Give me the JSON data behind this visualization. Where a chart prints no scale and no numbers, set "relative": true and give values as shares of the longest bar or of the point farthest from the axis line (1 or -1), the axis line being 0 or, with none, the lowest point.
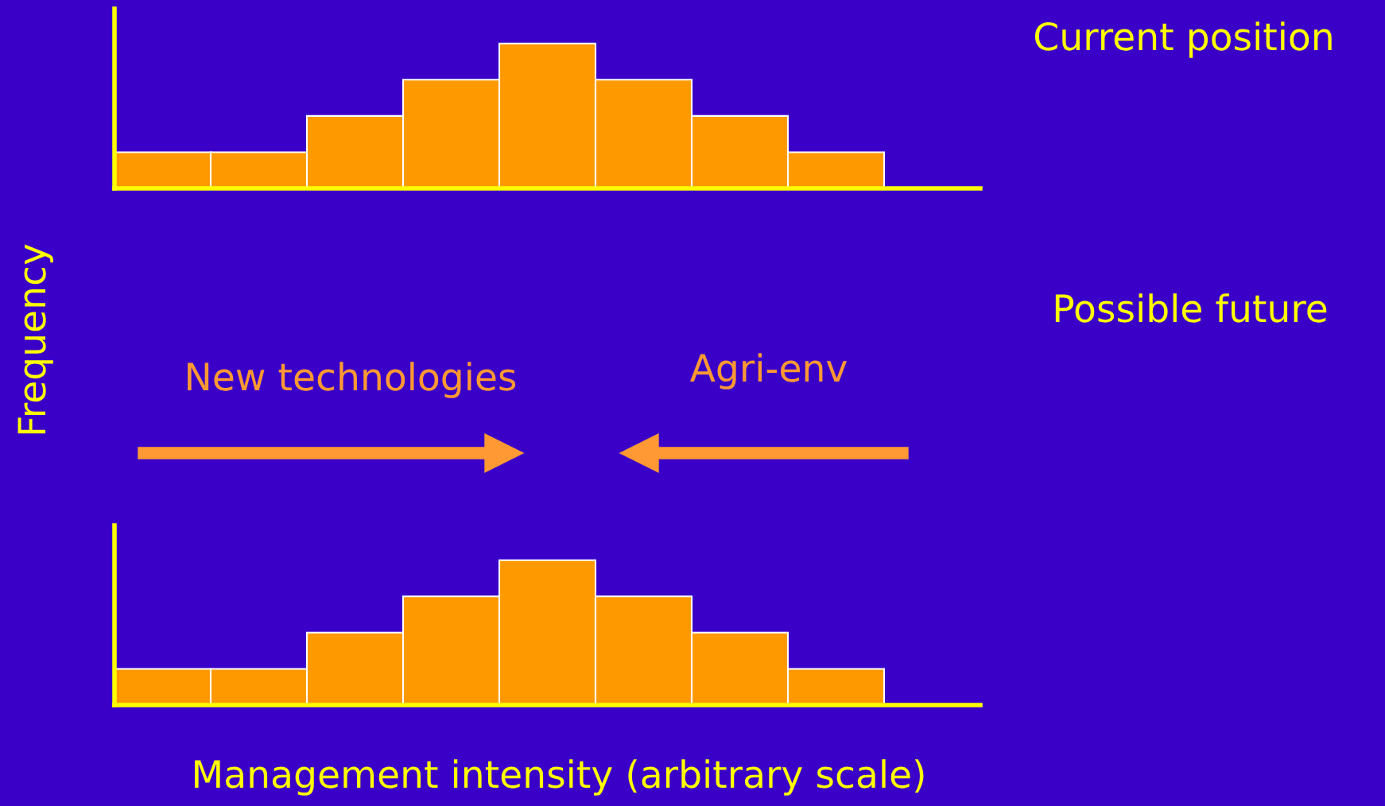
{
  "chart_data": [
    {
      "type": "bar",
      "ylabel": "Frequency",
      "relative": true,
      "categories": [
        null,
        null,
        null,
        null,
        null,
        null,
        null,
        null
      ],
      "values": [
        0.25,
        0.25,
        0.5,
        0.75,
        1,
        0.75,
        0.5,
        0.25
      ],
      "color": "#ff9900",
      "grid": false,
      "legend": false,
      "annotations": [
        "Current position"
      ]
    },
    {
      "type": "bar",
      "xlabel": "Management intensity (arbitrary scale)",
      "relative": true,
      "categories": [
        null,
        null,
        null,
        null,
        null,
        null,
        null,
        null
      ],
      "values": [
        0.25,
        0.25,
        0.5,
        0.75,
        1,
        0.75,
        0.5,
        0.25
      ],
      "color": "#ff9900",
      "grid": false,
      "legend": false,
      "annotations": [
        "Possible future",
        "New technologies",
        "Agri-env"
      ]
    }
  ]
}
